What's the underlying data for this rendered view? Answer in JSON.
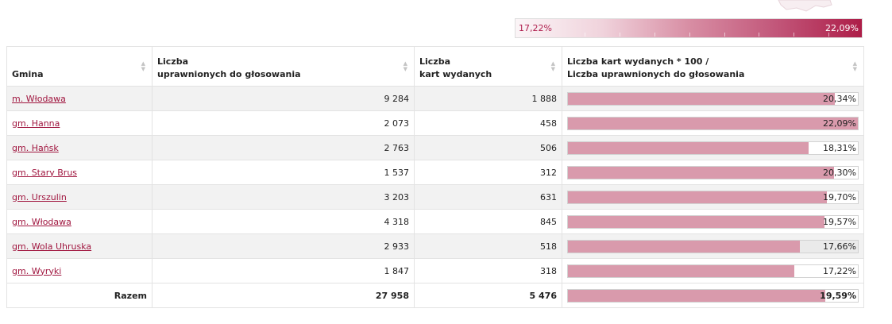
{
  "legend": {
    "min_label": "17,22%",
    "max_label": "22,09%",
    "colors": {
      "start": "#fbf5f7",
      "end": "#ad1d48"
    }
  },
  "table": {
    "headers": [
      {
        "line1": "",
        "line2": "Gmina"
      },
      {
        "line1": "Liczba",
        "line2": "uprawnionych do głosowania"
      },
      {
        "line1": "Liczba",
        "line2": "kart wydanych"
      },
      {
        "line1": "Liczba kart wydanych * 100 /",
        "line2": "Liczba uprawnionych do głosowania"
      }
    ],
    "rows": [
      {
        "gmina": "m. Włodawa",
        "uprawnionych": "9 284",
        "karty": "1 888",
        "percent_label": "20,34%",
        "percent": 20.34
      },
      {
        "gmina": "gm. Hanna",
        "uprawnionych": "2 073",
        "karty": "458",
        "percent_label": "22,09%",
        "percent": 22.09
      },
      {
        "gmina": "gm. Hańsk",
        "uprawnionych": "2 763",
        "karty": "506",
        "percent_label": "18,31%",
        "percent": 18.31
      },
      {
        "gmina": "gm. Stary Brus",
        "uprawnionych": "1 537",
        "karty": "312",
        "percent_label": "20,30%",
        "percent": 20.3
      },
      {
        "gmina": "gm. Urszulin",
        "uprawnionych": "3 203",
        "karty": "631",
        "percent_label": "19,70%",
        "percent": 19.7
      },
      {
        "gmina": "gm. Włodawa",
        "uprawnionych": "4 318",
        "karty": "845",
        "percent_label": "19,57%",
        "percent": 19.57
      },
      {
        "gmina": "gm. Wola Uhruska",
        "uprawnionych": "2 933",
        "karty": "518",
        "percent_label": "17,66%",
        "percent": 17.66
      },
      {
        "gmina": "gm. Wyryki",
        "uprawnionych": "1 847",
        "karty": "318",
        "percent_label": "17,22%",
        "percent": 17.22
      }
    ],
    "total": {
      "label": "Razem",
      "uprawnionych": "27 958",
      "karty": "5 476",
      "percent_label": "19,59%",
      "percent": 19.59
    },
    "bar_max_percent": 22.09
  },
  "icons": {
    "sort": "sort-arrows-icon"
  }
}
